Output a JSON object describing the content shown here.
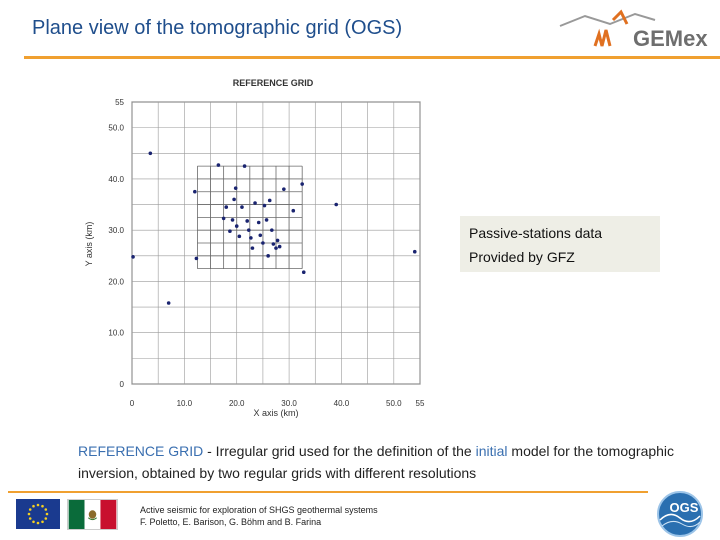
{
  "header": {
    "title": "Plane view of the tomographic grid (OGS)",
    "logo_text": "GEMex"
  },
  "chart_data": {
    "type": "scatter",
    "title": "REFERENCE GRID",
    "xlabel": "X axis (km)",
    "ylabel": "Y axis (km)",
    "xlim": [
      0,
      55
    ],
    "ylim": [
      0,
      55
    ],
    "x_ticks": [
      "0",
      "10.0",
      "20.0",
      "30.0",
      "40.0",
      "50.0",
      "55"
    ],
    "y_ticks": [
      "0",
      "10.0",
      "20.0",
      "30.0",
      "40.0",
      "50.0",
      "55"
    ],
    "grid": true,
    "points": [
      [
        3.5,
        45.0
      ],
      [
        0.2,
        24.8
      ],
      [
        7.0,
        15.8
      ],
      [
        12.0,
        37.5
      ],
      [
        12.3,
        24.5
      ],
      [
        16.5,
        42.7
      ],
      [
        17.5,
        32.3
      ],
      [
        18.0,
        34.5
      ],
      [
        18.7,
        29.8
      ],
      [
        19.2,
        32.0
      ],
      [
        19.5,
        36.0
      ],
      [
        19.8,
        38.2
      ],
      [
        20.0,
        30.8
      ],
      [
        20.5,
        28.8
      ],
      [
        21.0,
        34.5
      ],
      [
        21.5,
        42.5
      ],
      [
        22.0,
        31.8
      ],
      [
        22.3,
        30.0
      ],
      [
        22.7,
        28.5
      ],
      [
        23.0,
        26.5
      ],
      [
        23.5,
        35.3
      ],
      [
        24.2,
        31.5
      ],
      [
        24.5,
        29.0
      ],
      [
        25.0,
        27.5
      ],
      [
        25.3,
        34.8
      ],
      [
        25.7,
        32.0
      ],
      [
        26.0,
        25.0
      ],
      [
        26.3,
        35.8
      ],
      [
        26.7,
        30.0
      ],
      [
        27.0,
        27.3
      ],
      [
        27.5,
        26.5
      ],
      [
        27.8,
        28.0
      ],
      [
        28.2,
        26.8
      ],
      [
        29.0,
        38.0
      ],
      [
        30.8,
        33.8
      ],
      [
        32.5,
        39.0
      ],
      [
        32.8,
        21.8
      ],
      [
        39.0,
        35.0
      ],
      [
        54.0,
        25.8
      ]
    ]
  },
  "note": {
    "line1": "Passive-stations data",
    "line2": "Provided by GFZ"
  },
  "caption": {
    "part1": "REFERENCE GRID",
    "part2": " - Irregular grid used for the definition of the ",
    "part3": "initial",
    "part4": " model for the tomographic inversion, obtained by two regular grids with different resolutions"
  },
  "footer": {
    "line1": "Active seismic for exploration of SHGS geothermal systems",
    "line2": "F. Poletto, E. Barison, G. Böhm and B. Farina",
    "ogs_label": "OGS"
  }
}
